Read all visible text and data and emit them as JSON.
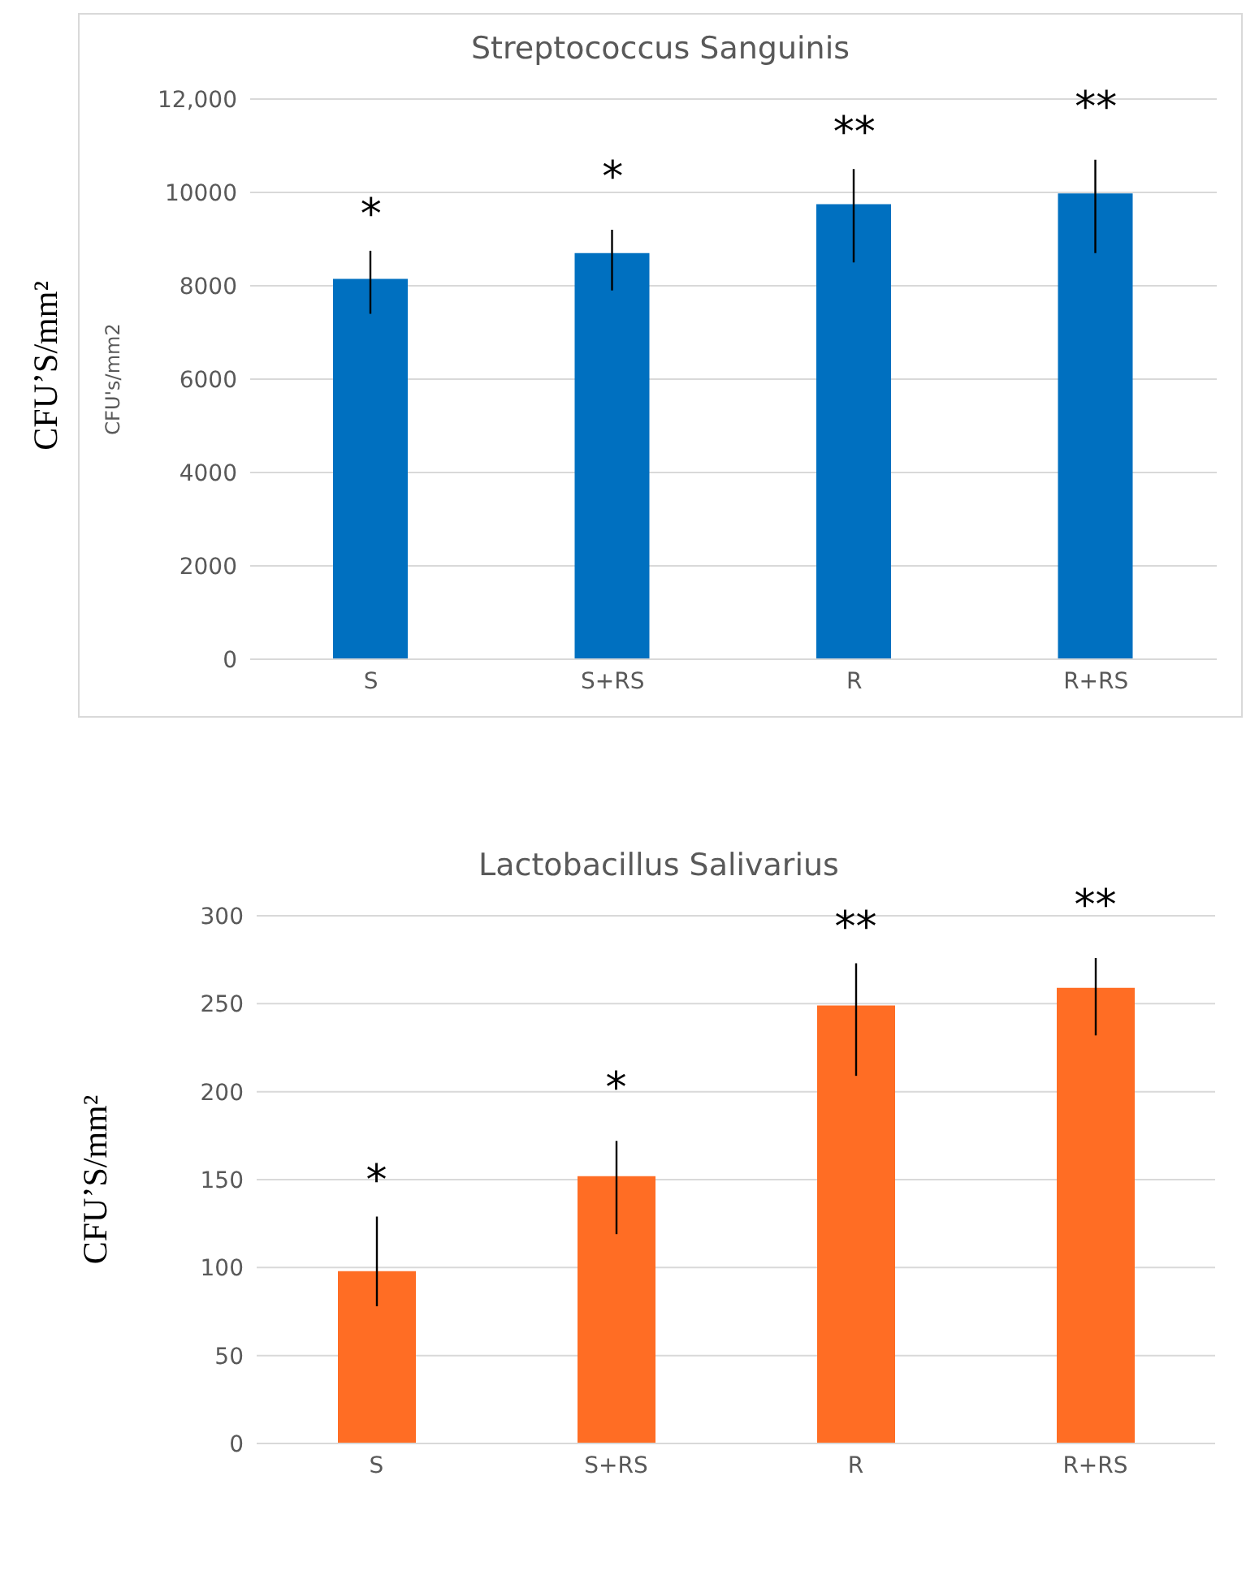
{
  "chart_data": [
    {
      "type": "bar",
      "title": "Streptococcus Sanguinis",
      "ylabel": "CFU's/mm2",
      "categories": [
        "S",
        "S+RS",
        "R",
        "R+RS"
      ],
      "values": [
        8150,
        8700,
        9750,
        9980
      ],
      "color": "#0070c0",
      "errors": [
        [
          7400,
          8750
        ],
        [
          7900,
          9200
        ],
        [
          8500,
          10500
        ],
        [
          8700,
          10700
        ]
      ],
      "ylim": [
        0,
        12000
      ],
      "yticks": [
        0,
        2000,
        4000,
        6000,
        8000,
        10000,
        {
          "value": 12000,
          "label": "12,000"
        }
      ],
      "grid": "y",
      "legend": false,
      "annotations": [
        "*",
        "*",
        "**",
        "**",
        "CFU’S/mm²"
      ]
    },
    {
      "type": "bar",
      "title": "Lactobacillus Salivarius",
      "ylabel": "CFU’S/mm²",
      "categories": [
        "S",
        "S+RS",
        "R",
        "R+RS"
      ],
      "values": [
        98,
        152,
        249,
        259
      ],
      "color": "#ff6d24",
      "errors": [
        [
          78,
          129
        ],
        [
          119,
          172
        ],
        [
          209,
          273
        ],
        [
          232,
          276
        ]
      ],
      "ylim": [
        0,
        300
      ],
      "yticks": [
        0,
        50,
        100,
        150,
        200,
        250,
        300
      ],
      "grid": "y",
      "legend": false,
      "annotations": [
        "*",
        "*",
        "**",
        "**"
      ]
    }
  ]
}
